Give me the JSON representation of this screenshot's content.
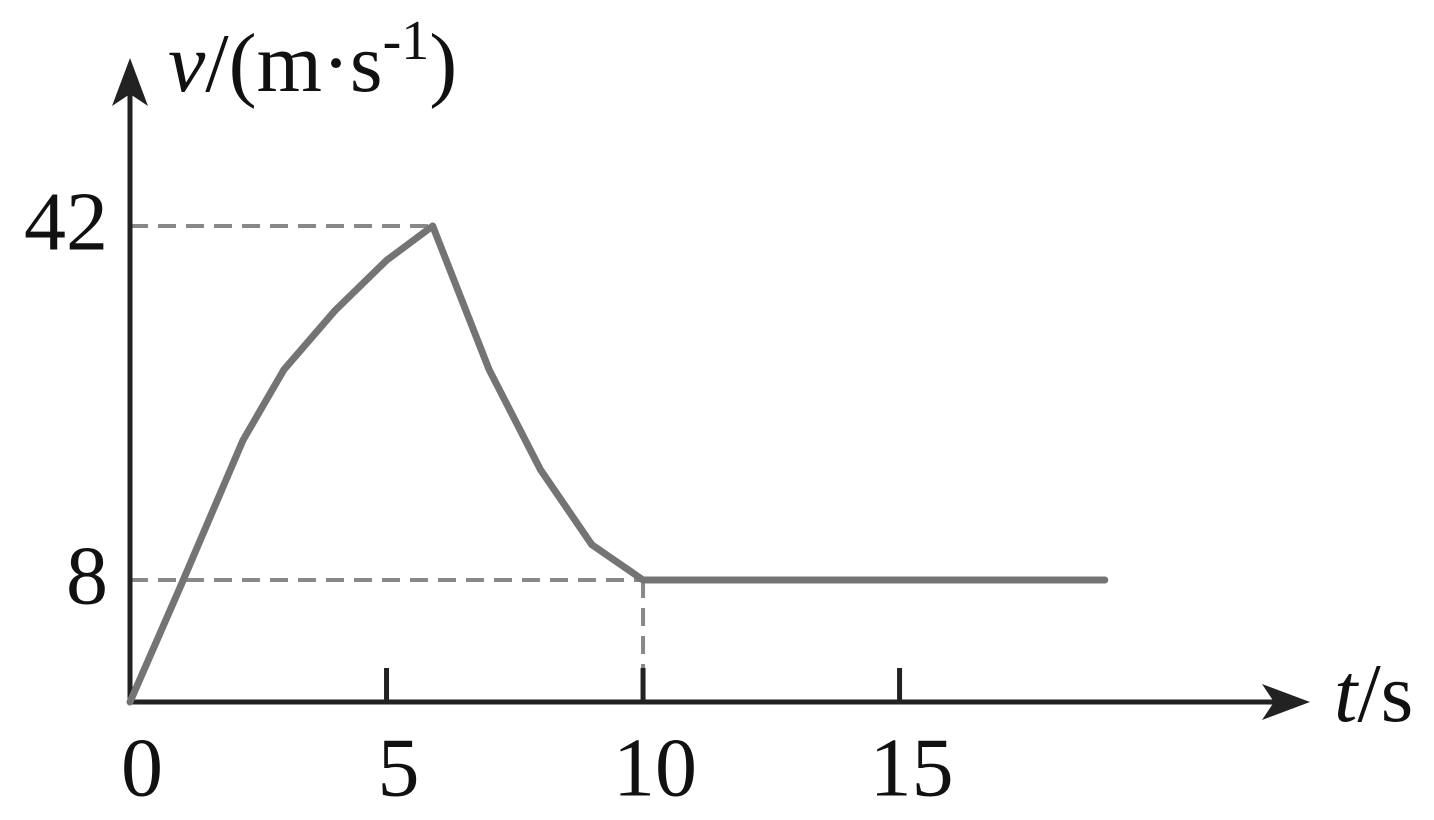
{
  "chart_data": {
    "type": "line",
    "ylabel_parts": [
      "v",
      "/(m·s",
      "-1",
      ")"
    ],
    "xlabel_parts": [
      "t",
      "/s"
    ],
    "x": [
      0,
      1,
      2.2,
      3,
      4,
      5,
      5.9,
      7,
      8,
      9,
      10,
      19
    ],
    "series": [
      {
        "color": "#747474",
        "values": [
          0,
          7.7,
          21.4,
          28.2,
          33.9,
          38.7,
          42,
          28.2,
          18.6,
          11.4,
          8,
          8
        ]
      }
    ],
    "xlim": [
      0,
      23
    ],
    "xticks": [
      0,
      5,
      10,
      15
    ],
    "ylim": [
      0,
      58
    ],
    "yticks": [
      0,
      8,
      42
    ],
    "axis_color": "#222222",
    "guide_color": "#888888"
  }
}
